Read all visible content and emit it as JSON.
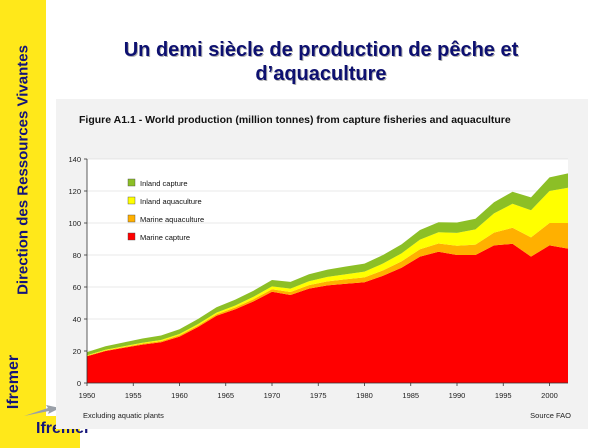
{
  "sidebar": {
    "text": "Direction des Ressources Vivantes",
    "logo_text": "Ifremer"
  },
  "slide": {
    "title_line1": "Un demi siècle de production de pêche et",
    "title_line2": "d’aquaculture"
  },
  "colors": {
    "sidebar_bg": "#ffe81a",
    "title": "#0d1070",
    "marine_capture": "#ff0000",
    "marine_aquaculture": "#ffb000",
    "inland_aquaculture": "#ffff00",
    "inland_capture": "#8cbf26"
  },
  "chart_data": {
    "type": "area",
    "stacked": true,
    "title": "Figure A1.1 - World production (million tonnes) from capture fisheries and aquaculture",
    "footnote": "Excluding aquatic plants",
    "source": "Source FAO",
    "xlim": [
      1950,
      2002
    ],
    "ylim": [
      0,
      140
    ],
    "x_ticks": [
      1950,
      1955,
      1960,
      1965,
      1970,
      1975,
      1980,
      1985,
      1990,
      1995,
      2000
    ],
    "y_ticks": [
      0,
      20,
      40,
      60,
      80,
      100,
      120,
      140
    ],
    "legend_position": "top-left",
    "x": [
      1950,
      1952,
      1954,
      1956,
      1958,
      1960,
      1962,
      1964,
      1966,
      1968,
      1970,
      1972,
      1974,
      1976,
      1978,
      1980,
      1982,
      1984,
      1986,
      1988,
      1990,
      1992,
      1994,
      1996,
      1998,
      2000,
      2002
    ],
    "series": [
      {
        "name": "Marine capture",
        "color": "#ff0000",
        "values": [
          16.7,
          20,
          22,
          24,
          25.5,
          29,
          35,
          42,
          46,
          51,
          57,
          55,
          59,
          61,
          62,
          63,
          67,
          72,
          79,
          82,
          80,
          80,
          86,
          87,
          79,
          86,
          84
        ]
      },
      {
        "name": "Marine aquaculture",
        "color": "#ffb000",
        "values": [
          0.3,
          0.4,
          0.5,
          0.6,
          0.7,
          0.8,
          0.9,
          1,
          1.2,
          1.4,
          1.6,
          1.9,
          2.2,
          2.5,
          2.8,
          3,
          3.4,
          4,
          4.6,
          5.2,
          5.8,
          6.5,
          8,
          10,
          12,
          14,
          16
        ]
      },
      {
        "name": "Inland aquaculture",
        "color": "#ffff00",
        "values": [
          0.3,
          0.4,
          0.5,
          0.6,
          0.7,
          0.8,
          0.9,
          1,
          1.2,
          1.5,
          1.8,
          2.1,
          2.4,
          2.8,
          3.2,
          3.6,
          4.3,
          5,
          6,
          7,
          8,
          9.5,
          12,
          15,
          17,
          20,
          22
        ]
      },
      {
        "name": "Inland capture",
        "color": "#8cbf26",
        "values": [
          2,
          2.2,
          2.4,
          2.6,
          2.8,
          3,
          3.2,
          3.4,
          3.6,
          3.8,
          4,
          4.2,
          4.4,
          4.6,
          4.8,
          5,
          5.3,
          5.6,
          6,
          6.3,
          6.5,
          6.7,
          7,
          7.5,
          8,
          8.5,
          9
        ]
      }
    ]
  }
}
